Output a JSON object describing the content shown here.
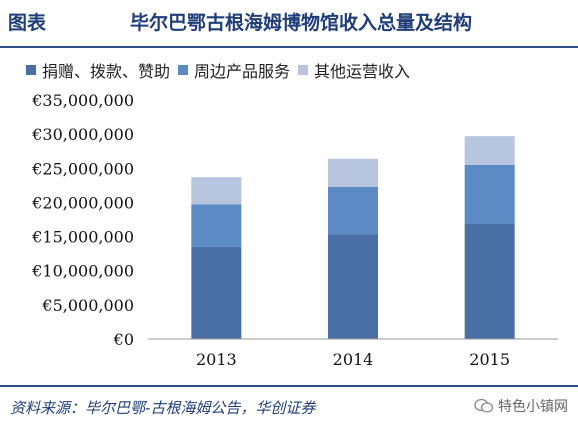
{
  "header": {
    "label": "图表",
    "title": "毕尔巴鄂古根海姆博物馆收入总量及结构"
  },
  "footer": {
    "source": "资料来源：毕尔巴鄂-古根海姆公告，华创证券",
    "watermark": "特色小镇网"
  },
  "colors": {
    "accent": "#1f3d78",
    "rule": "#2e4f86"
  },
  "icons": {
    "watermark": "wechat-icon"
  },
  "chart_data": {
    "type": "bar",
    "stacked": true,
    "categories": [
      "2013",
      "2014",
      "2015"
    ],
    "series": [
      {
        "name": "捐赠、拨款、赞助",
        "values": [
          13500000,
          15300000,
          16900000
        ],
        "color": "#4a6fa5"
      },
      {
        "name": "周边产品服务",
        "values": [
          6200000,
          7000000,
          8600000
        ],
        "color": "#5b8ac4"
      },
      {
        "name": "其他运营收入",
        "values": [
          4000000,
          4100000,
          4200000
        ],
        "color": "#b7c5df"
      }
    ],
    "ylim": [
      0,
      35000000
    ],
    "yticks": [
      0,
      5000000,
      10000000,
      15000000,
      20000000,
      25000000,
      30000000,
      35000000
    ],
    "ytick_labels": [
      "€0",
      "€5,000,000",
      "€10,000,000",
      "€15,000,000",
      "€20,000,000",
      "€25,000,000",
      "€30,000,000",
      "€35,000,000"
    ],
    "legend_position": "top",
    "grid": false
  }
}
